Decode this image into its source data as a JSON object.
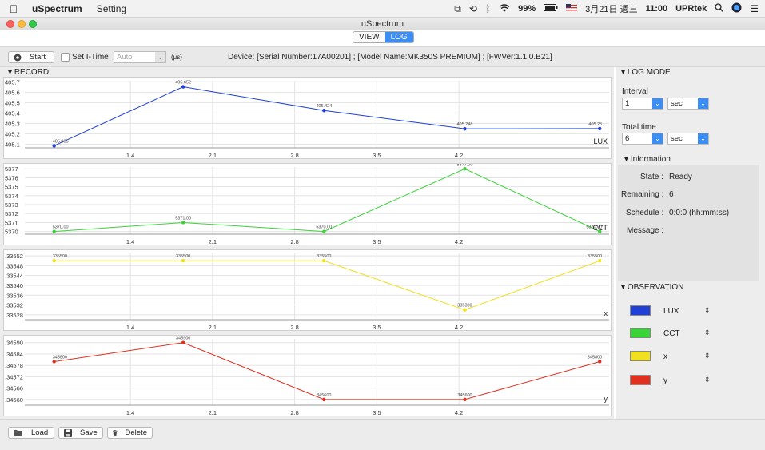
{
  "menubar": {
    "app_name": "uSpectrum",
    "menus": [
      "Setting"
    ],
    "battery": "99%",
    "date": "3月21日 週三",
    "time": "11:00",
    "user": "UPRtek"
  },
  "window": {
    "title": "uSpectrum"
  },
  "tabs": [
    {
      "label": "VIEW",
      "active": false
    },
    {
      "label": "LOG",
      "active": true
    }
  ],
  "toolbar": {
    "start_label": "Start",
    "set_itime_label": "Set I-Time",
    "itime_value": "Auto",
    "itime_unit": "(μs)",
    "device_info": "Device: [Serial Number:17A00201] ; [Model Name:MK350S PREMIUM] ; [FWVer:1.1.0.B21]"
  },
  "record": {
    "header": "RECORD",
    "x_ticks": [
      "1.4",
      "2.1",
      "2.8",
      "3.5",
      "4.2"
    ]
  },
  "chart_data": [
    {
      "type": "line",
      "series": [
        {
          "name": "LUX",
          "color": "#1f3fd6",
          "labels": [
            "405.085",
            "405.652",
            "405.424",
            "405.248",
            "405.25"
          ],
          "values": [
            405.085,
            405.652,
            405.424,
            405.248,
            405.25
          ]
        }
      ],
      "x": [
        0.75,
        1.85,
        3.05,
        4.25,
        5.4
      ],
      "y_ticks": [
        "405.7",
        "405.6",
        "405.5",
        "405.4",
        "405.3",
        "405.2",
        "405.1"
      ],
      "ylim": [
        405.065,
        405.71
      ],
      "corner_label": "LUX"
    },
    {
      "type": "line",
      "series": [
        {
          "name": "CCT",
          "color": "#3ad43a",
          "labels": [
            "5370.00",
            "5371.00",
            "5370.00",
            "5377.00",
            "5370.00"
          ],
          "values": [
            5370,
            5371,
            5370,
            5377,
            5370
          ]
        }
      ],
      "x": [
        0.75,
        1.85,
        3.05,
        4.25,
        5.4
      ],
      "y_ticks": [
        "5377",
        "5376",
        "5375",
        "5374",
        "5373",
        "5372",
        "5371",
        "5370"
      ],
      "ylim": [
        5369.7,
        5377.2
      ],
      "corner_label": "CCT"
    },
    {
      "type": "line",
      "series": [
        {
          "name": "x",
          "color": "#f0e020",
          "labels": [
            "335500",
            "335500",
            "335500",
            "335300",
            "335500"
          ],
          "values": [
            0.3355,
            0.3355,
            0.3355,
            0.3353,
            0.3355
          ]
        }
      ],
      "x": [
        0.75,
        1.85,
        3.05,
        4.25,
        5.4
      ],
      "y_ticks": [
        ".33552",
        ".33548",
        ".33544",
        ".33540",
        ".33536",
        ".33532",
        ".33528"
      ],
      "ylim": [
        0.33526,
        0.33553
      ],
      "corner_label": "x"
    },
    {
      "type": "line",
      "series": [
        {
          "name": "y",
          "color": "#e03020",
          "labels": [
            "345800",
            "345900",
            "345600",
            "345600",
            "345800"
          ],
          "values": [
            0.3458,
            0.3459,
            0.3456,
            0.3456,
            0.3458
          ]
        }
      ],
      "x": [
        0.75,
        1.85,
        3.05,
        4.25,
        5.4
      ],
      "y_ticks": [
        ".34590",
        ".34584",
        ".34578",
        ".34572",
        ".34566",
        ".34560"
      ],
      "ylim": [
        0.34557,
        0.34592
      ],
      "corner_label": "y"
    }
  ],
  "log_mode": {
    "header": "LOG MODE",
    "interval_label": "Interval",
    "interval_value": "1",
    "interval_unit": "sec",
    "total_time_label": "Total time",
    "total_time_value": "6",
    "total_time_unit": "sec",
    "info_header": "Information",
    "state_label": "State :",
    "state_value": "Ready",
    "remaining_label": "Remaining :",
    "remaining_value": "6",
    "schedule_label": "Schedule :",
    "schedule_value": "0:0:0 (hh:mm:ss)",
    "message_label": "Message :"
  },
  "observation": {
    "header": "OBSERVATION",
    "items": [
      {
        "label": "LUX",
        "color": "#1f3fd6"
      },
      {
        "label": "CCT",
        "color": "#3ad43a"
      },
      {
        "label": "x",
        "color": "#f0e020"
      },
      {
        "label": "y",
        "color": "#e03020"
      }
    ]
  },
  "bottom": {
    "load_label": "Load",
    "save_label": "Save",
    "delete_label": "Delete"
  },
  "icons": {
    "apple": "apple-icon",
    "wifi": "wifi-icon",
    "search": "search-icon",
    "start": "record-icon",
    "load": "folder-icon",
    "save": "floppy-icon",
    "delete": "trash-icon"
  }
}
